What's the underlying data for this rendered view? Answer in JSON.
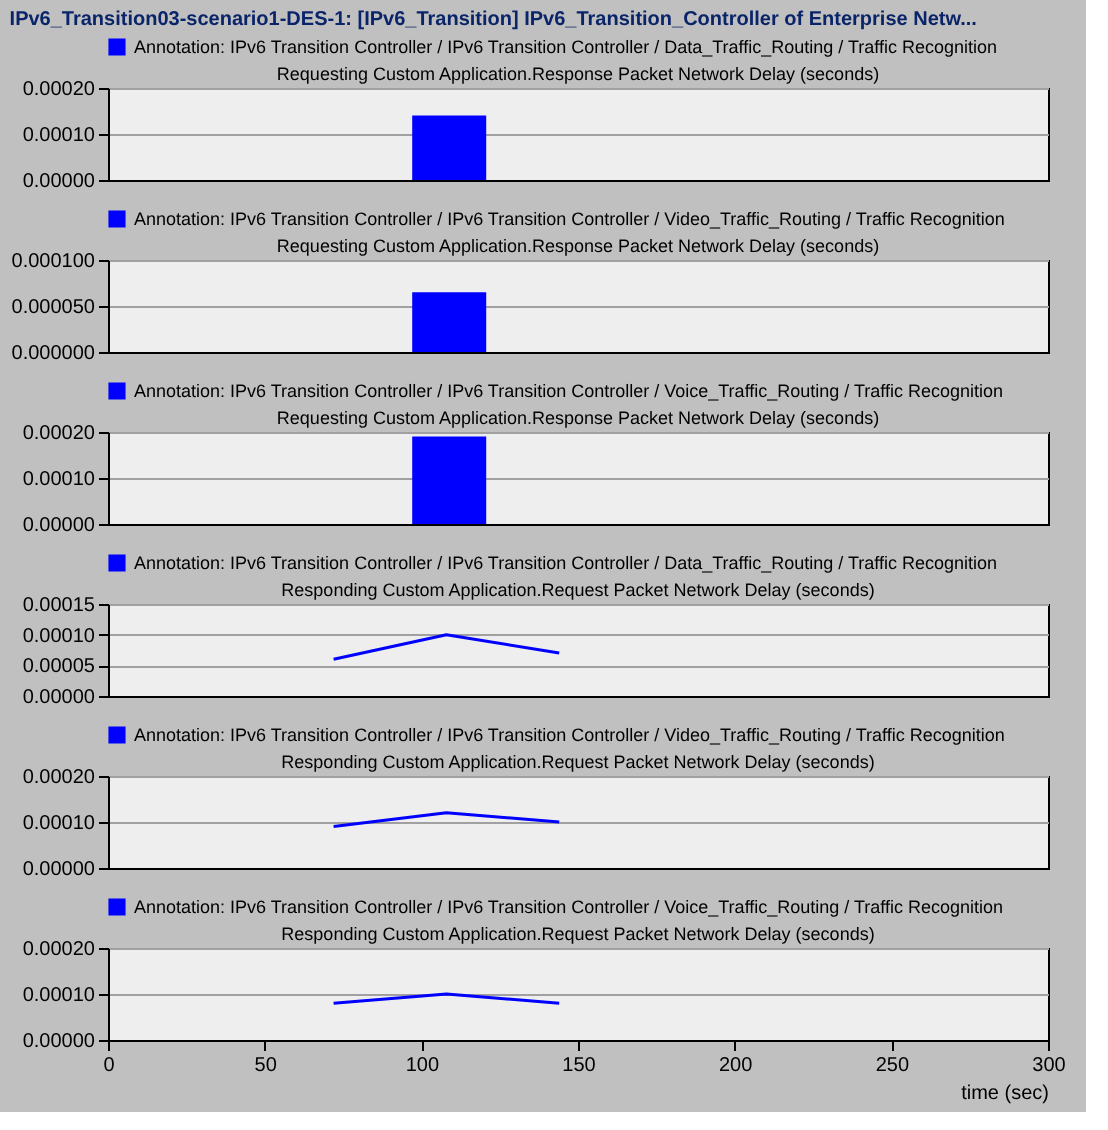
{
  "chart_data": [
    {
      "type": "bar",
      "title": "Requesting Custom Application.Response Packet Network Delay (seconds)",
      "annotations": [
        "IPv6_Transition03-scenario1-DES-1: [IPv6_Transition] IPv6_Transition_Controller of Enterprise Netw..."
      ],
      "series": [
        {
          "name": "Annotation: IPv6 Transition Controller / IPv6 Transition Controller / Data_Traffic_Routing / Traffic Recognition",
          "color": "#0000ff",
          "x": [
            108
          ],
          "values": [
            0.00014
          ]
        }
      ],
      "xlim": [
        0,
        300
      ],
      "xticks": [
        0,
        50,
        100,
        150,
        200,
        250,
        300
      ],
      "ylim": [
        0,
        0.0002
      ],
      "yticks": [
        {
          "value": 0,
          "label": "0.00000"
        },
        {
          "value": 0.0001,
          "label": "0.00010"
        },
        {
          "value": 0.0002,
          "label": "0.00020"
        }
      ],
      "grid": "y",
      "legend": "top",
      "tick_labels": "y"
    },
    {
      "type": "bar",
      "title": "Requesting Custom Application.Response Packet Network Delay (seconds)",
      "series": [
        {
          "name": "Annotation: IPv6 Transition Controller / IPv6 Transition Controller / Video_Traffic_Routing / Traffic Recognition",
          "color": "#0000ff",
          "x": [
            108
          ],
          "values": [
            6.5e-05
          ]
        }
      ],
      "xlim": [
        0,
        300
      ],
      "xticks": [
        0,
        50,
        100,
        150,
        200,
        250,
        300
      ],
      "ylim": [
        0,
        0.0001
      ],
      "yticks": [
        {
          "value": 0,
          "label": "0.000000"
        },
        {
          "value": 5e-05,
          "label": "0.000050"
        },
        {
          "value": 0.0001,
          "label": "0.000100"
        }
      ],
      "grid": "y",
      "legend": "top",
      "tick_labels": "y"
    },
    {
      "type": "bar",
      "title": "Requesting Custom Application.Response Packet Network Delay (seconds)",
      "series": [
        {
          "name": "Annotation: IPv6 Transition Controller / IPv6 Transition Controller / Voice_Traffic_Routing / Traffic Recognition",
          "color": "#0000ff",
          "x": [
            108
          ],
          "values": [
            0.00019
          ]
        }
      ],
      "xlim": [
        0,
        300
      ],
      "xticks": [
        0,
        50,
        100,
        150,
        200,
        250,
        300
      ],
      "ylim": [
        0,
        0.0002
      ],
      "yticks": [
        {
          "value": 0,
          "label": "0.00000"
        },
        {
          "value": 0.0001,
          "label": "0.00010"
        },
        {
          "value": 0.0002,
          "label": "0.00020"
        }
      ],
      "grid": "y",
      "legend": "top",
      "tick_labels": "y"
    },
    {
      "type": "line",
      "title": "Responding Custom Application.Request Packet Network Delay (seconds)",
      "series": [
        {
          "name": "Annotation: IPv6 Transition Controller / IPv6 Transition Controller / Data_Traffic_Routing / Traffic Recognition",
          "color": "#0000ff",
          "x": [
            72,
            108,
            144
          ],
          "values": [
            6e-05,
            0.0001,
            7e-05
          ]
        }
      ],
      "xlim": [
        0,
        300
      ],
      "xticks": [
        0,
        50,
        100,
        150,
        200,
        250,
        300
      ],
      "ylim": [
        0,
        0.00015
      ],
      "yticks": [
        {
          "value": 0,
          "label": "0.00000"
        },
        {
          "value": 5e-05,
          "label": "0.00005"
        },
        {
          "value": 0.0001,
          "label": "0.00010"
        },
        {
          "value": 0.00015,
          "label": "0.00015"
        }
      ],
      "grid": "y",
      "legend": "top",
      "tick_labels": "y"
    },
    {
      "type": "line",
      "title": "Responding Custom Application.Request Packet Network Delay (seconds)",
      "series": [
        {
          "name": "Annotation: IPv6 Transition Controller / IPv6 Transition Controller / Video_Traffic_Routing / Traffic Recognition",
          "color": "#0000ff",
          "x": [
            72,
            108,
            144
          ],
          "values": [
            9e-05,
            0.00012,
            0.0001
          ]
        }
      ],
      "xlim": [
        0,
        300
      ],
      "xticks": [
        0,
        50,
        100,
        150,
        200,
        250,
        300
      ],
      "ylim": [
        0,
        0.0002
      ],
      "yticks": [
        {
          "value": 0,
          "label": "0.00000"
        },
        {
          "value": 0.0001,
          "label": "0.00010"
        },
        {
          "value": 0.0002,
          "label": "0.00020"
        }
      ],
      "grid": "y",
      "legend": "top",
      "tick_labels": "y"
    },
    {
      "type": "line",
      "title": "Responding Custom Application.Request Packet Network Delay (seconds)",
      "xlabel": "time (sec)",
      "series": [
        {
          "name": "Annotation: IPv6 Transition Controller / IPv6 Transition Controller / Voice_Traffic_Routing / Traffic Recognition",
          "color": "#0000ff",
          "x": [
            72,
            108,
            144
          ],
          "values": [
            8e-05,
            0.0001,
            8e-05
          ]
        }
      ],
      "xlim": [
        0,
        300
      ],
      "xticks": [
        0,
        50,
        100,
        150,
        200,
        250,
        300
      ],
      "ylim": [
        0,
        0.0002
      ],
      "yticks": [
        {
          "value": 0,
          "label": "0.00000"
        },
        {
          "value": 0.0001,
          "label": "0.00010"
        },
        {
          "value": 0.0002,
          "label": "0.00020"
        }
      ],
      "grid": "y",
      "legend": "top"
    }
  ]
}
